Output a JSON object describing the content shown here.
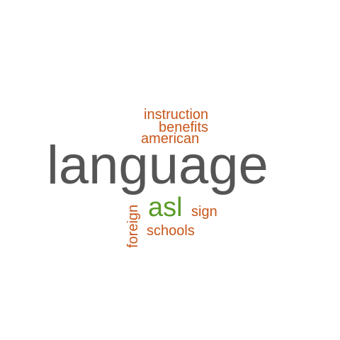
{
  "colors": {
    "background": "#ffffff",
    "primary": "#555555",
    "orange": "#c8561a",
    "green": "#5a9b2a"
  },
  "words": {
    "language": {
      "text": "language",
      "color": "#555555"
    },
    "instruction": {
      "text": "instruction",
      "color": "#c8561a"
    },
    "benefits": {
      "text": "benefits",
      "color": "#c8561a"
    },
    "american": {
      "text": "american",
      "color": "#c8561a"
    },
    "asl": {
      "text": "asl",
      "color": "#5a9b2a"
    },
    "sign": {
      "text": "sign",
      "color": "#c8561a"
    },
    "schools": {
      "text": "schools",
      "color": "#c8561a"
    },
    "foreign": {
      "text": "foreign",
      "color": "#c8561a",
      "orientation": "vertical"
    }
  }
}
